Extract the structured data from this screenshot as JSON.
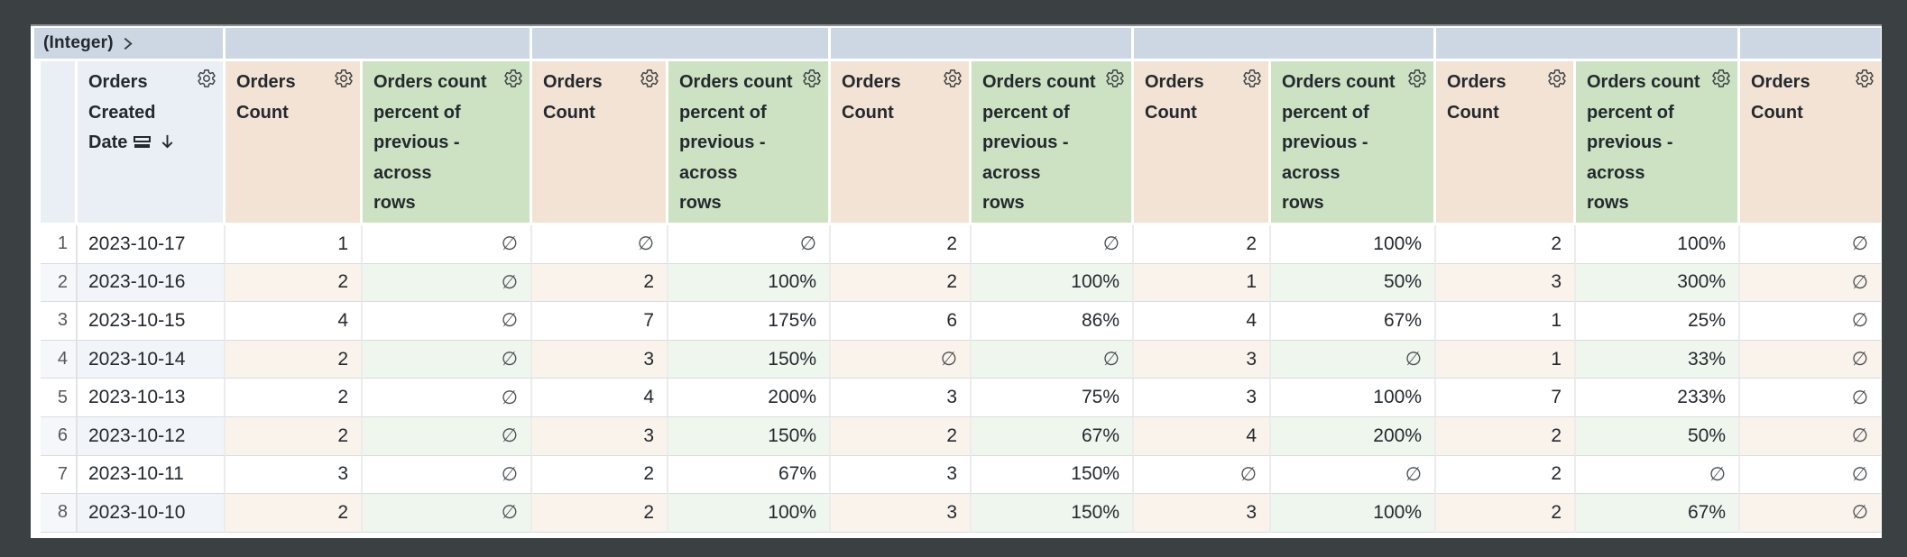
{
  "window": {
    "background_color": "#3b4043"
  },
  "pivot_band": {
    "field_type_label": "(Integer)",
    "chevron_icon": "chevron-right-icon",
    "band_color": "#cdd7e4"
  },
  "header": {
    "date_label": "Orders\nCreated\nDate",
    "count_label": "Orders\nCount",
    "percent_label": "Orders count\npercent of\nprevious -\nacross\nrows",
    "gear_icon": "gear-icon",
    "date_icons": [
      "stacked-rows-icon",
      "arrow-down-icon"
    ],
    "date_header_color": "#eaeff6",
    "count_header_color": "#f3e3d4",
    "percent_header_color": "#cce2c3"
  },
  "null_symbol": "∅",
  "value_column_types": [
    "count",
    "percent",
    "count",
    "percent",
    "count",
    "percent",
    "count",
    "percent",
    "count",
    "percent",
    "count"
  ],
  "rows": [
    {
      "num": "1",
      "date": "2023-10-17",
      "values": [
        "1",
        "∅",
        "∅",
        "∅",
        "2",
        "∅",
        "2",
        "100%",
        "2",
        "100%",
        "∅"
      ]
    },
    {
      "num": "2",
      "date": "2023-10-16",
      "values": [
        "2",
        "∅",
        "2",
        "100%",
        "2",
        "100%",
        "1",
        "50%",
        "3",
        "300%",
        "∅"
      ]
    },
    {
      "num": "3",
      "date": "2023-10-15",
      "values": [
        "4",
        "∅",
        "7",
        "175%",
        "6",
        "86%",
        "4",
        "67%",
        "1",
        "25%",
        "∅"
      ]
    },
    {
      "num": "4",
      "date": "2023-10-14",
      "values": [
        "2",
        "∅",
        "3",
        "150%",
        "∅",
        "∅",
        "3",
        "∅",
        "1",
        "33%",
        "∅"
      ]
    },
    {
      "num": "5",
      "date": "2023-10-13",
      "values": [
        "2",
        "∅",
        "4",
        "200%",
        "3",
        "75%",
        "3",
        "100%",
        "7",
        "233%",
        "∅"
      ]
    },
    {
      "num": "6",
      "date": "2023-10-12",
      "values": [
        "2",
        "∅",
        "3",
        "150%",
        "2",
        "67%",
        "4",
        "200%",
        "2",
        "50%",
        "∅"
      ]
    },
    {
      "num": "7",
      "date": "2023-10-11",
      "values": [
        "3",
        "∅",
        "2",
        "67%",
        "3",
        "150%",
        "∅",
        "∅",
        "2",
        "∅",
        "∅"
      ]
    },
    {
      "num": "8",
      "date": "2023-10-10",
      "values": [
        "2",
        "∅",
        "2",
        "100%",
        "3",
        "150%",
        "3",
        "100%",
        "2",
        "67%",
        "∅"
      ]
    }
  ]
}
